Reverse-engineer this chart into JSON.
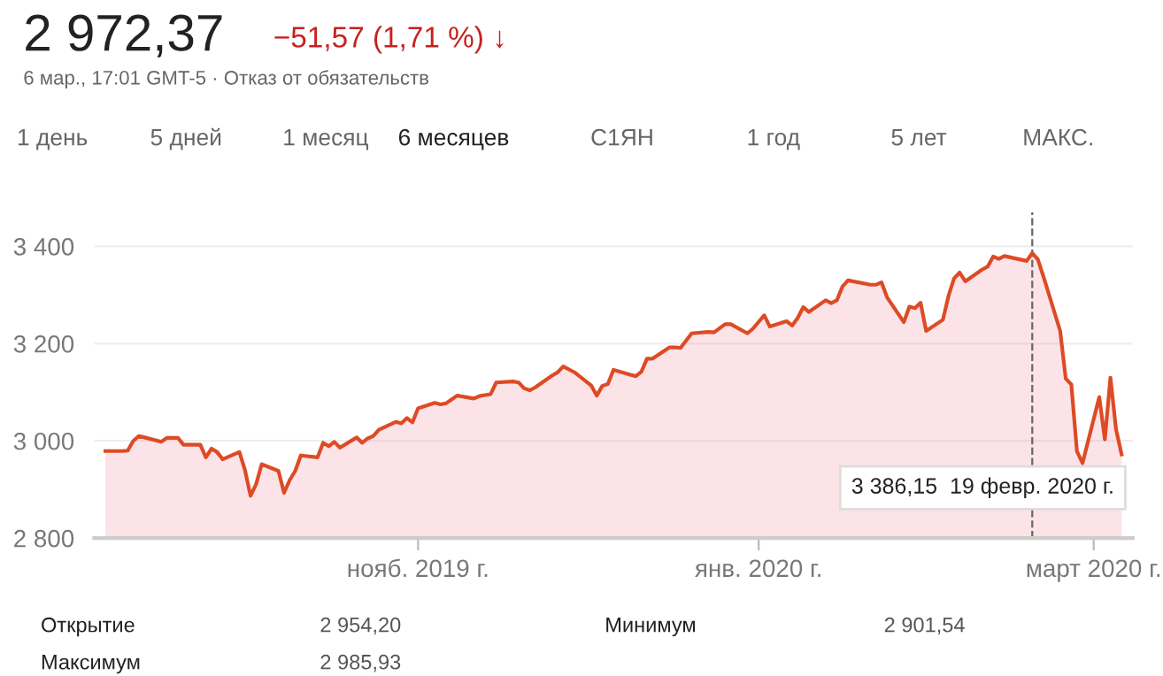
{
  "chart_data": {
    "type": "area",
    "title": "2 972,37",
    "subtitle": "−51,57 (1,71 %) ↓",
    "annotations": [
      "6 мар., 17:01 GMT-5 · Отказ от обязательств",
      "1 день",
      "5 дней",
      "1 месяц",
      "6 месяцев",
      "С1ЯН",
      "1 год",
      "5 лет",
      "МАКС.",
      "Открытие",
      "2 954,20",
      "Минимум",
      "2 901,54",
      "Максимум",
      "2 985,93",
      "3 386,15  19 февр. 2020 г."
    ],
    "x": [
      "2019-09-06",
      "2019-09-09",
      "2019-09-10",
      "2019-09-11",
      "2019-09-12",
      "2019-09-13",
      "2019-09-16",
      "2019-09-17",
      "2019-09-18",
      "2019-09-19",
      "2019-09-20",
      "2019-09-23",
      "2019-09-24",
      "2019-09-25",
      "2019-09-26",
      "2019-09-27",
      "2019-09-30",
      "2019-10-01",
      "2019-10-02",
      "2019-10-03",
      "2019-10-04",
      "2019-10-07",
      "2019-10-08",
      "2019-10-09",
      "2019-10-10",
      "2019-10-11",
      "2019-10-14",
      "2019-10-15",
      "2019-10-16",
      "2019-10-17",
      "2019-10-18",
      "2019-10-21",
      "2019-10-22",
      "2019-10-23",
      "2019-10-24",
      "2019-10-25",
      "2019-10-28",
      "2019-10-29",
      "2019-10-30",
      "2019-10-31",
      "2019-11-01",
      "2019-11-04",
      "2019-11-05",
      "2019-11-06",
      "2019-11-07",
      "2019-11-08",
      "2019-11-11",
      "2019-11-12",
      "2019-11-13",
      "2019-11-14",
      "2019-11-15",
      "2019-11-18",
      "2019-11-19",
      "2019-11-20",
      "2019-11-21",
      "2019-11-22",
      "2019-11-25",
      "2019-11-26",
      "2019-11-27",
      "2019-11-29",
      "2019-12-02",
      "2019-12-03",
      "2019-12-04",
      "2019-12-05",
      "2019-12-06",
      "2019-12-09",
      "2019-12-10",
      "2019-12-11",
      "2019-12-12",
      "2019-12-13",
      "2019-12-16",
      "2019-12-17",
      "2019-12-18",
      "2019-12-19",
      "2019-12-20",
      "2019-12-23",
      "2019-12-24",
      "2019-12-26",
      "2019-12-27",
      "2019-12-30",
      "2019-12-31",
      "2020-01-02",
      "2020-01-03",
      "2020-01-06",
      "2020-01-07",
      "2020-01-08",
      "2020-01-09",
      "2020-01-10",
      "2020-01-13",
      "2020-01-14",
      "2020-01-15",
      "2020-01-16",
      "2020-01-17",
      "2020-01-21",
      "2020-01-22",
      "2020-01-23",
      "2020-01-24",
      "2020-01-27",
      "2020-01-28",
      "2020-01-29",
      "2020-01-30",
      "2020-01-31",
      "2020-02-03",
      "2020-02-04",
      "2020-02-05",
      "2020-02-06",
      "2020-02-07",
      "2020-02-10",
      "2020-02-11",
      "2020-02-12",
      "2020-02-13",
      "2020-02-14",
      "2020-02-18",
      "2020-02-19",
      "2020-02-20",
      "2020-02-21",
      "2020-02-24",
      "2020-02-25",
      "2020-02-26",
      "2020-02-27",
      "2020-02-28",
      "2020-03-02",
      "2020-03-03",
      "2020-03-04",
      "2020-03-05",
      "2020-03-06"
    ],
    "series": [
      {
        "color": "#dd4b25",
        "values": [
          2979,
          2979,
          2980,
          3000,
          3010,
          3007,
          2998,
          3006,
          3006,
          3006,
          2992,
          2992,
          2966,
          2984,
          2977,
          2962,
          2977,
          2940,
          2887,
          2911,
          2952,
          2938,
          2893,
          2919,
          2938,
          2970,
          2966,
          2996,
          2989,
          2998,
          2986,
          3007,
          2996,
          3005,
          3010,
          3023,
          3039,
          3036,
          3047,
          3038,
          3067,
          3078,
          3075,
          3077,
          3085,
          3093,
          3087,
          3092,
          3094,
          3096,
          3120,
          3122,
          3120,
          3108,
          3104,
          3110,
          3134,
          3141,
          3153,
          3141,
          3114,
          3093,
          3113,
          3117,
          3146,
          3136,
          3133,
          3142,
          3169,
          3169,
          3192,
          3192,
          3191,
          3206,
          3221,
          3224,
          3223,
          3240,
          3240,
          3221,
          3231,
          3258,
          3235,
          3246,
          3237,
          3253,
          3275,
          3265,
          3289,
          3283,
          3289,
          3317,
          3330,
          3321,
          3321,
          3326,
          3295,
          3244,
          3276,
          3273,
          3284,
          3226,
          3249,
          3298,
          3334,
          3346,
          3328,
          3352,
          3358,
          3379,
          3374,
          3380,
          3370,
          3386,
          3373,
          3338,
          3226,
          3128,
          3116,
          2979,
          2954,
          3090,
          3003,
          3130,
          3024,
          2972
        ]
      }
    ],
    "xlim": [
      "2019-09-04",
      "2020-03-08"
    ],
    "xticks": [
      {
        "value": "2019-11-01",
        "label": "нояб. 2019 г."
      },
      {
        "value": "2020-01-01",
        "label": "янв. 2020 г."
      },
      {
        "value": "2020-03-01",
        "label": "март 2020 г."
      }
    ],
    "ylim": [
      2800,
      3470
    ],
    "yticks": [
      {
        "value": 2800,
        "label": "2 800"
      },
      {
        "value": 3000,
        "label": "3 000"
      },
      {
        "value": 3200,
        "label": "3 200"
      },
      {
        "value": 3400,
        "label": "3 400"
      }
    ],
    "ref_lines": [
      {
        "axis": "x",
        "value": "2020-02-19",
        "line_style": "dashed",
        "color": "#666666"
      }
    ],
    "grid": "y",
    "marker": "none",
    "line_style": "solid",
    "legend": false
  }
}
